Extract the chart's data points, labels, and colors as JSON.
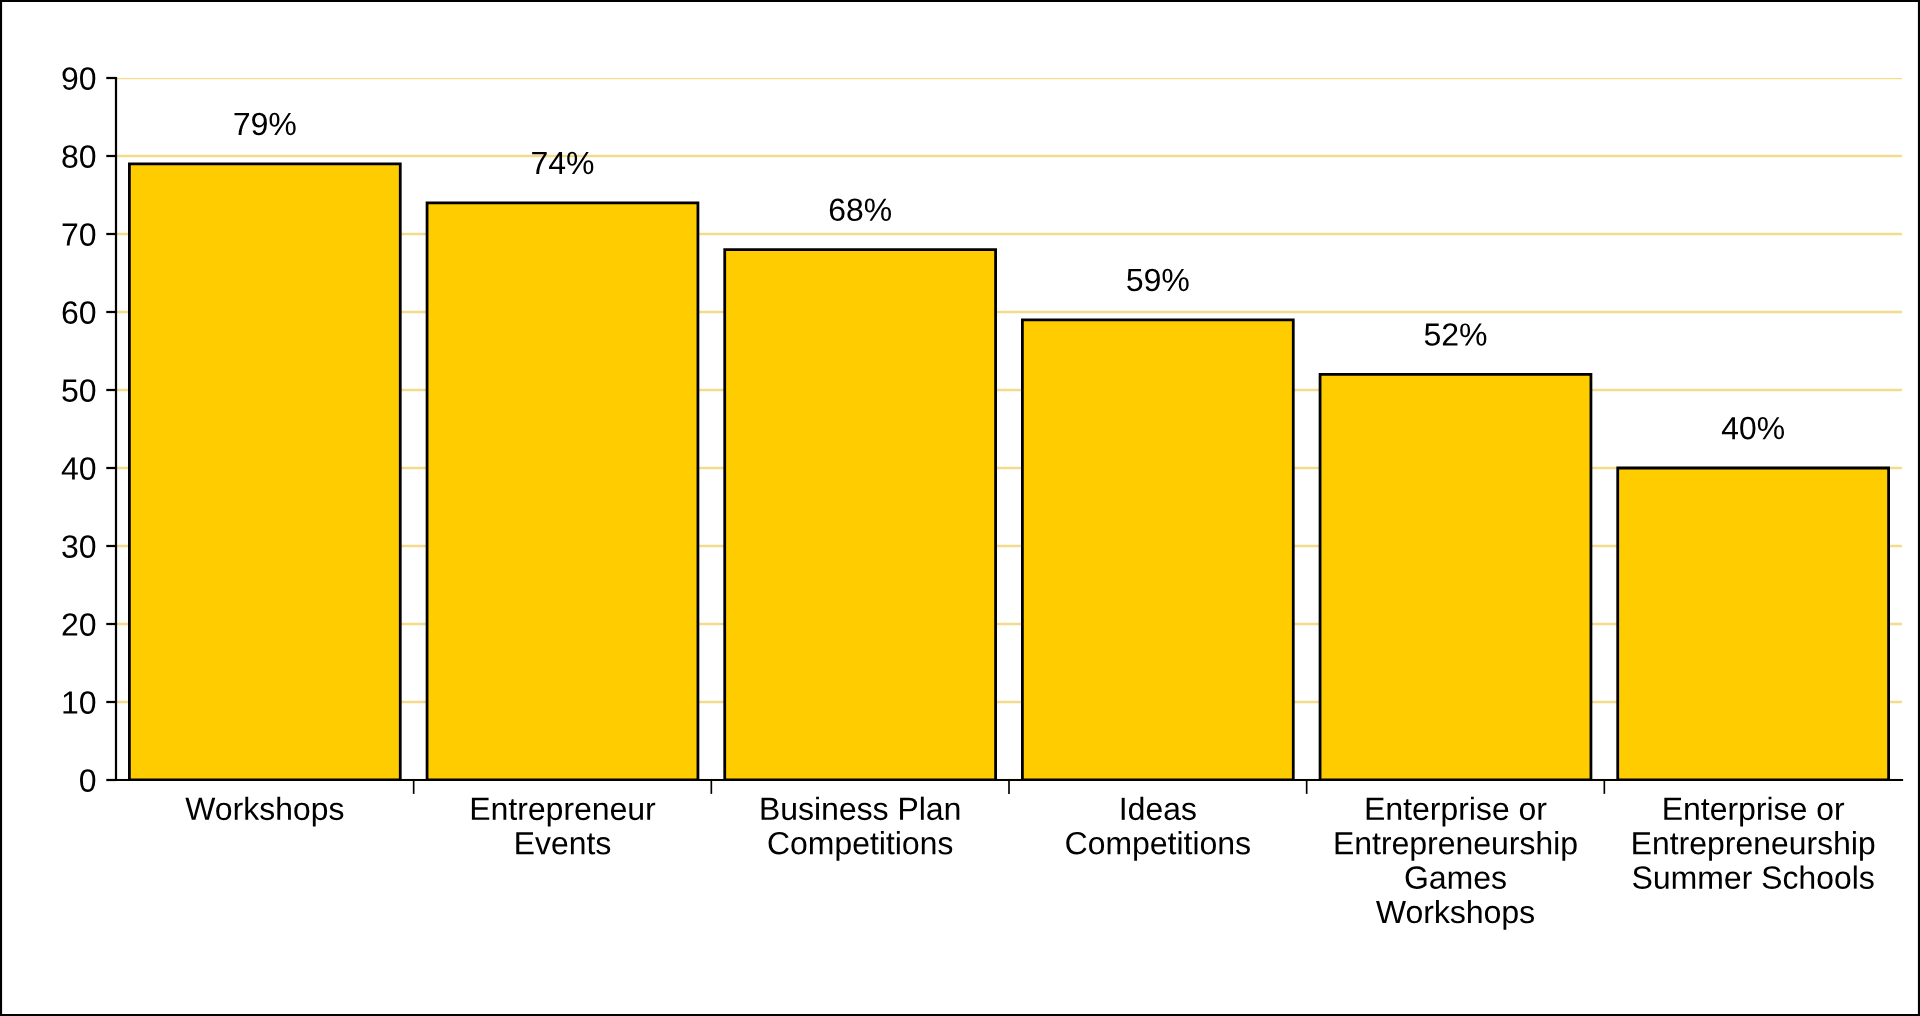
{
  "chart_data": {
    "type": "bar",
    "categories": [
      "Workshops",
      "Entrepreneur\nEvents",
      "Business Plan\nCompetitions",
      "Ideas\nCompetitions",
      "Enterprise or\nEntrepreneurship\nGames\nWorkshops",
      "Enterprise or\nEntrepreneurship\nSummer Schools"
    ],
    "values": [
      79,
      74,
      68,
      59,
      52,
      40
    ],
    "value_labels": [
      "79%",
      "74%",
      "68%",
      "59%",
      "52%",
      "40%"
    ],
    "color": "#ffcc00",
    "ylim": [
      0,
      90
    ],
    "yticks": [
      0,
      10,
      20,
      30,
      40,
      50,
      60,
      70,
      80,
      90
    ],
    "grid": "y"
  }
}
